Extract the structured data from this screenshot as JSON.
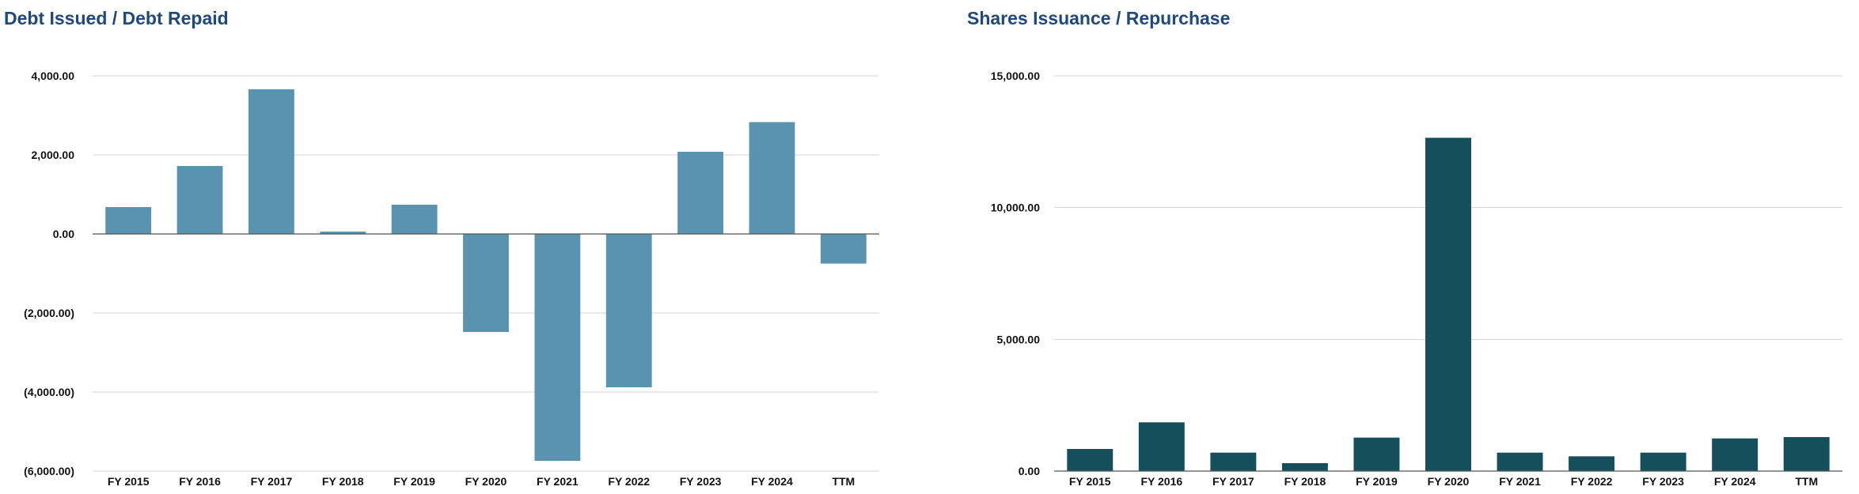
{
  "chart_data": [
    {
      "type": "bar",
      "title": "Debt Issued / Debt Repaid",
      "xlabel": "",
      "ylabel": "",
      "categories": [
        "FY 2015",
        "FY 2016",
        "FY 2017",
        "FY 2018",
        "FY 2019",
        "FY 2020",
        "FY 2021",
        "FY 2022",
        "FY 2023",
        "FY 2024",
        "TTM"
      ],
      "values": [
        680,
        1720,
        3660,
        60,
        740,
        -2480,
        -5740,
        -3880,
        2080,
        2830,
        -750
      ],
      "ylim": [
        -6000,
        4000
      ],
      "yticks": [
        4000,
        2000,
        0,
        -2000,
        -4000,
        -6000
      ],
      "ytick_labels": [
        "4,000.00",
        "2,000.00",
        "0.00",
        "(2,000.00)",
        "(4,000.00)",
        "(6,000.00)"
      ],
      "grid": true,
      "bar_color": "#5a93b0"
    },
    {
      "type": "bar",
      "title": "Shares Issuance / Repurchase",
      "xlabel": "",
      "ylabel": "",
      "categories": [
        "FY 2015",
        "FY 2016",
        "FY 2017",
        "FY 2018",
        "FY 2019",
        "FY 2020",
        "FY 2021",
        "FY 2022",
        "FY 2023",
        "FY 2024",
        "TTM"
      ],
      "values": [
        840,
        1850,
        700,
        300,
        1270,
        12650,
        700,
        560,
        700,
        1240,
        1290
      ],
      "ylim": [
        0,
        15000
      ],
      "yticks": [
        15000,
        10000,
        5000,
        0
      ],
      "ytick_labels": [
        "15,000.00",
        "10,000.00",
        "5,000.00",
        "0.00"
      ],
      "grid": true,
      "bar_color": "#154f5b"
    }
  ]
}
